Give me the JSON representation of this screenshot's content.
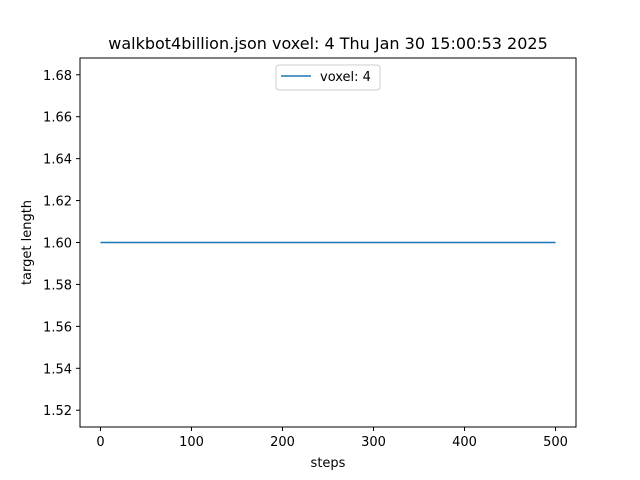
{
  "chart_data": {
    "type": "line",
    "title": "walkbot4billion.json voxel: 4 Thu Jan 30 15:00:53 2025",
    "xlabel": "steps",
    "ylabel": "target length",
    "xlim": [
      -22.5,
      522.5
    ],
    "ylim": [
      1.512,
      1.688
    ],
    "xticks": [
      0,
      100,
      200,
      300,
      400,
      500
    ],
    "yticks": [
      1.52,
      1.54,
      1.56,
      1.58,
      1.6,
      1.62,
      1.64,
      1.66,
      1.68
    ],
    "ytick_labels": [
      "1.52",
      "1.54",
      "1.56",
      "1.58",
      "1.60",
      "1.62",
      "1.64",
      "1.66",
      "1.68"
    ],
    "grid": false,
    "legend_position": "upper center",
    "series": [
      {
        "name": "voxel: 4",
        "color": "#1f77b4",
        "x": [
          0,
          500
        ],
        "y": [
          1.6,
          1.6
        ]
      }
    ]
  }
}
